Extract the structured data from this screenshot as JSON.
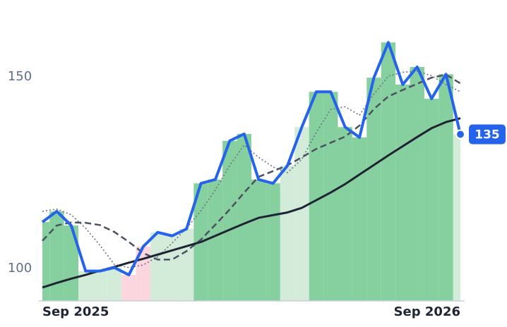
{
  "chart_data": {
    "type": "line",
    "categories": [
      "Sep 2025",
      null,
      null,
      null,
      null,
      null,
      null,
      null,
      null,
      null,
      null,
      null,
      null,
      null,
      null,
      null,
      null,
      null,
      null,
      null,
      null,
      null,
      null,
      null,
      null,
      null,
      null,
      null,
      null,
      "Sep 2026"
    ],
    "series": [
      {
        "color": "#2563eb",
        "style": "solid",
        "values": [
          112.1,
          114.9,
          111.2,
          99.3,
          99.3,
          100.2,
          98.3,
          105.7,
          109.4,
          108.5,
          110.3,
          122.2,
          123.2,
          133.3,
          135.1,
          123.2,
          122.2,
          126.8,
          136.9,
          146.1,
          146.1,
          136.9,
          134.2,
          149.8,
          159,
          148,
          152.6,
          144.3,
          150.7,
          135
        ]
      },
      {
        "color": "#1e2433",
        "style": "solid",
        "values": [
          95,
          96.2,
          97.3,
          98.3,
          99.4,
          100.4,
          101.5,
          102.5,
          103.6,
          104.7,
          105.8,
          106.9,
          108.5,
          110.1,
          111.7,
          113.2,
          113.9,
          114.6,
          115.8,
          117.8,
          119.8,
          122,
          124.5,
          127,
          129.5,
          131.9,
          134.3,
          136.6,
          138.2,
          139.2
        ]
      },
      {
        "color": "#4a5160",
        "style": "dashed",
        "values": [
          107.2,
          111.2,
          112,
          111.9,
          111.3,
          109.5,
          106.9,
          104,
          102.3,
          102.3,
          104.5,
          107.5,
          111.4,
          115.4,
          119.8,
          123.9,
          125.4,
          126.9,
          129,
          131.2,
          132.8,
          134.4,
          137.3,
          141.6,
          144.9,
          146.6,
          148.2,
          149.8,
          150.6,
          148.3
        ]
      },
      {
        "color": "#6b7280",
        "style": "dotted",
        "values": [
          114.9,
          115.5,
          114,
          110.5,
          106,
          101,
          100.2,
          100.9,
          103,
          106.6,
          110.5,
          115,
          120.5,
          126.9,
          132.2,
          129,
          126.5,
          125,
          128.5,
          135.5,
          141.5,
          142.2,
          140,
          145.5,
          150.2,
          151.2,
          151.5,
          150.3,
          148,
          146.1
        ]
      }
    ],
    "fill_colors": [
      "#86cf9e",
      "#86cf9e",
      "#86cf9e",
      "#d3ecda",
      "#d3ecda",
      "#d3ecda",
      "#fcd6de",
      "#fcd6de",
      "#d3ecda",
      "#d3ecda",
      "#d3ecda",
      "#86cf9e",
      "#86cf9e",
      "#86cf9e",
      "#86cf9e",
      "#86cf9e",
      "#86cf9e",
      "#d3ecda",
      "#d3ecda",
      "#86cf9e",
      "#86cf9e",
      "#86cf9e",
      "#86cf9e",
      "#86cf9e",
      "#86cf9e",
      "#86cf9e",
      "#86cf9e",
      "#86cf9e",
      "#86cf9e",
      "#d3ecda"
    ],
    "ylim": [
      91.5,
      166.4
    ],
    "yticks": [
      100,
      150
    ]
  }
}
